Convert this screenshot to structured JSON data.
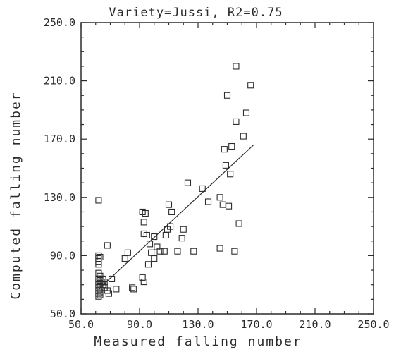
{
  "chart_data": {
    "type": "scatter",
    "title": "Variety=Jussi, R2=0.75",
    "xlabel": "Measured falling number",
    "ylabel": "Computed falling number",
    "xlim": [
      50,
      250
    ],
    "ylim": [
      50,
      250
    ],
    "x_ticks": [
      "50.0",
      "90.0",
      "130.0",
      "170.0",
      "210.0",
      "250.0"
    ],
    "y_ticks": [
      "50.0",
      "90.0",
      "130.0",
      "170.0",
      "210.0",
      "250.0"
    ],
    "grid": false,
    "colors": {
      "ink": "#2b2b2b"
    },
    "points": [
      [
        62,
        128
      ],
      [
        62,
        90
      ],
      [
        62,
        88
      ],
      [
        62,
        86
      ],
      [
        62,
        84
      ],
      [
        62,
        78
      ],
      [
        62,
        74
      ],
      [
        62,
        72
      ],
      [
        62,
        70
      ],
      [
        62,
        68
      ],
      [
        62,
        66
      ],
      [
        62,
        64
      ],
      [
        62,
        62
      ],
      [
        63,
        89
      ],
      [
        63,
        76
      ],
      [
        63,
        73
      ],
      [
        63,
        71
      ],
      [
        63,
        69
      ],
      [
        63,
        67
      ],
      [
        63,
        65
      ],
      [
        63,
        63
      ],
      [
        64,
        72
      ],
      [
        65,
        74
      ],
      [
        65,
        70
      ],
      [
        66,
        68
      ],
      [
        66,
        72
      ],
      [
        68,
        97
      ],
      [
        68,
        66
      ],
      [
        69,
        64
      ],
      [
        71,
        74
      ],
      [
        74,
        67
      ],
      [
        82,
        92
      ],
      [
        80,
        88
      ],
      [
        85,
        68
      ],
      [
        86,
        67
      ],
      [
        92,
        120
      ],
      [
        94,
        119
      ],
      [
        93,
        113
      ],
      [
        93,
        105
      ],
      [
        95,
        104
      ],
      [
        96,
        84
      ],
      [
        92,
        75
      ],
      [
        93,
        72
      ],
      [
        97,
        98
      ],
      [
        98,
        92
      ],
      [
        100,
        103
      ],
      [
        100,
        88
      ],
      [
        102,
        96
      ],
      [
        104,
        93
      ],
      [
        107,
        93
      ],
      [
        108,
        104
      ],
      [
        109,
        108
      ],
      [
        110,
        125
      ],
      [
        111,
        110
      ],
      [
        112,
        120
      ],
      [
        116,
        93
      ],
      [
        119,
        102
      ],
      [
        120,
        108
      ],
      [
        123,
        140
      ],
      [
        127,
        93
      ],
      [
        133,
        136
      ],
      [
        137,
        127
      ],
      [
        145,
        130
      ],
      [
        145,
        95
      ],
      [
        147,
        125
      ],
      [
        148,
        163
      ],
      [
        149,
        152
      ],
      [
        150,
        200
      ],
      [
        151,
        124
      ],
      [
        152,
        146
      ],
      [
        153,
        165
      ],
      [
        155,
        93
      ],
      [
        156,
        182
      ],
      [
        156,
        220
      ],
      [
        158,
        112
      ],
      [
        161,
        172
      ],
      [
        163,
        188
      ],
      [
        166,
        207
      ]
    ],
    "fit_line": {
      "x": [
        62,
        168
      ],
      "y": [
        67,
        166
      ]
    }
  }
}
